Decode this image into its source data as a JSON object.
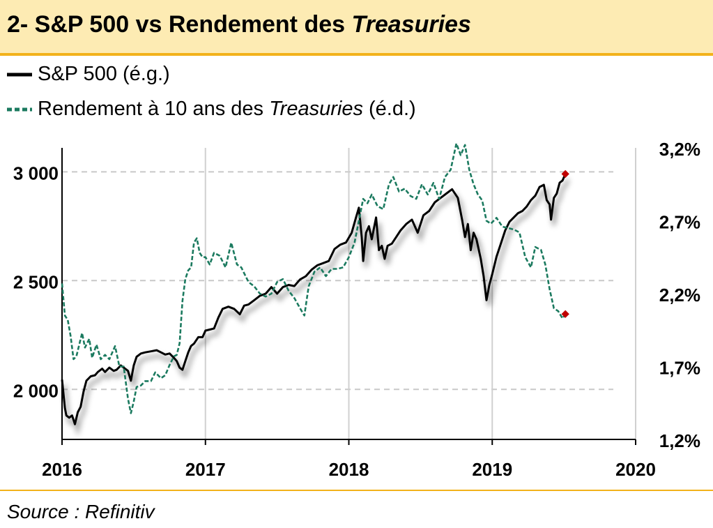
{
  "header": {
    "title_prefix": "2- S&P 500 vs Rendement des ",
    "title_italic": "Treasuries"
  },
  "legend": {
    "item1": "S&P 500 (é.g.)",
    "item2_prefix": "Rendement à 10 ans des ",
    "item2_italic": "Treasuries",
    "item2_suffix": " (é.d.)"
  },
  "source": "Source : Refinitiv",
  "colors": {
    "sp500": "#000000",
    "yield": "#1b7a5f",
    "marker": "#c00000",
    "accent": "#f2b21b",
    "header_bg": "#fdebb3"
  },
  "chart_data": {
    "type": "line",
    "x_ticks": [
      "2016",
      "2017",
      "2018",
      "2019",
      "2020"
    ],
    "xlim": [
      2016,
      2020
    ],
    "left_axis": {
      "ticks": [
        "2 000",
        "2 500",
        "3 000"
      ],
      "tick_values": [
        2000,
        2500,
        3000
      ],
      "ylim": [
        1770,
        3110
      ]
    },
    "right_axis": {
      "ticks": [
        "1,2%",
        "1,7%",
        "2,2%",
        "2,7%",
        "3,2%"
      ],
      "tick_values": [
        1.2,
        1.7,
        2.2,
        2.7,
        3.2
      ],
      "ylim": [
        1.2,
        3.2
      ]
    },
    "grid": "horizontal dashed",
    "series": [
      {
        "name": "S&P 500 (é.g.)",
        "axis": "left",
        "style": "solid",
        "points": [
          [
            2016.0,
            2045
          ],
          [
            2016.02,
            1915
          ],
          [
            2016.03,
            1880
          ],
          [
            2016.05,
            1870
          ],
          [
            2016.07,
            1880
          ],
          [
            2016.09,
            1840
          ],
          [
            2016.11,
            1895
          ],
          [
            2016.13,
            1920
          ],
          [
            2016.15,
            1990
          ],
          [
            2016.17,
            2040
          ],
          [
            2016.2,
            2060
          ],
          [
            2016.23,
            2065
          ],
          [
            2016.25,
            2080
          ],
          [
            2016.28,
            2095
          ],
          [
            2016.3,
            2080
          ],
          [
            2016.33,
            2100
          ],
          [
            2016.36,
            2085
          ],
          [
            2016.38,
            2090
          ],
          [
            2016.41,
            2110
          ],
          [
            2016.44,
            2095
          ],
          [
            2016.46,
            2085
          ],
          [
            2016.48,
            2040
          ],
          [
            2016.5,
            2110
          ],
          [
            2016.52,
            2150
          ],
          [
            2016.55,
            2165
          ],
          [
            2016.58,
            2170
          ],
          [
            2016.62,
            2175
          ],
          [
            2016.66,
            2180
          ],
          [
            2016.69,
            2170
          ],
          [
            2016.72,
            2160
          ],
          [
            2016.75,
            2165
          ],
          [
            2016.78,
            2145
          ],
          [
            2016.8,
            2130
          ],
          [
            2016.82,
            2100
          ],
          [
            2016.84,
            2090
          ],
          [
            2016.86,
            2130
          ],
          [
            2016.88,
            2170
          ],
          [
            2016.9,
            2200
          ],
          [
            2016.92,
            2210
          ],
          [
            2016.95,
            2240
          ],
          [
            2016.98,
            2240
          ],
          [
            2017.0,
            2270
          ],
          [
            2017.03,
            2275
          ],
          [
            2017.06,
            2280
          ],
          [
            2017.09,
            2330
          ],
          [
            2017.12,
            2370
          ],
          [
            2017.16,
            2380
          ],
          [
            2017.2,
            2370
          ],
          [
            2017.24,
            2345
          ],
          [
            2017.27,
            2385
          ],
          [
            2017.3,
            2390
          ],
          [
            2017.34,
            2410
          ],
          [
            2017.38,
            2430
          ],
          [
            2017.42,
            2440
          ],
          [
            2017.46,
            2470
          ],
          [
            2017.5,
            2440
          ],
          [
            2017.54,
            2470
          ],
          [
            2017.58,
            2480
          ],
          [
            2017.62,
            2475
          ],
          [
            2017.66,
            2505
          ],
          [
            2017.7,
            2520
          ],
          [
            2017.74,
            2550
          ],
          [
            2017.78,
            2570
          ],
          [
            2017.82,
            2580
          ],
          [
            2017.86,
            2590
          ],
          [
            2017.9,
            2645
          ],
          [
            2017.94,
            2665
          ],
          [
            2017.98,
            2675
          ],
          [
            2018.02,
            2720
          ],
          [
            2018.05,
            2790
          ],
          [
            2018.07,
            2835
          ],
          [
            2018.09,
            2700
          ],
          [
            2018.1,
            2590
          ],
          [
            2018.12,
            2720
          ],
          [
            2018.14,
            2750
          ],
          [
            2018.16,
            2690
          ],
          [
            2018.19,
            2790
          ],
          [
            2018.21,
            2640
          ],
          [
            2018.23,
            2660
          ],
          [
            2018.25,
            2600
          ],
          [
            2018.27,
            2660
          ],
          [
            2018.3,
            2670
          ],
          [
            2018.33,
            2700
          ],
          [
            2018.36,
            2730
          ],
          [
            2018.4,
            2760
          ],
          [
            2018.44,
            2780
          ],
          [
            2018.48,
            2720
          ],
          [
            2018.52,
            2800
          ],
          [
            2018.56,
            2820
          ],
          [
            2018.6,
            2860
          ],
          [
            2018.64,
            2880
          ],
          [
            2018.68,
            2900
          ],
          [
            2018.72,
            2920
          ],
          [
            2018.76,
            2880
          ],
          [
            2018.79,
            2780
          ],
          [
            2018.81,
            2700
          ],
          [
            2018.83,
            2760
          ],
          [
            2018.85,
            2640
          ],
          [
            2018.87,
            2720
          ],
          [
            2018.89,
            2690
          ],
          [
            2018.92,
            2600
          ],
          [
            2018.94,
            2520
          ],
          [
            2018.96,
            2410
          ],
          [
            2018.98,
            2480
          ],
          [
            2019.0,
            2530
          ],
          [
            2019.03,
            2610
          ],
          [
            2019.06,
            2670
          ],
          [
            2019.09,
            2730
          ],
          [
            2019.12,
            2770
          ],
          [
            2019.15,
            2790
          ],
          [
            2019.18,
            2810
          ],
          [
            2019.21,
            2820
          ],
          [
            2019.24,
            2840
          ],
          [
            2019.27,
            2870
          ],
          [
            2019.3,
            2890
          ],
          [
            2019.33,
            2930
          ],
          [
            2019.36,
            2940
          ],
          [
            2019.38,
            2870
          ],
          [
            2019.4,
            2850
          ],
          [
            2019.41,
            2780
          ],
          [
            2019.43,
            2880
          ],
          [
            2019.45,
            2900
          ],
          [
            2019.47,
            2950
          ],
          [
            2019.49,
            2960
          ],
          [
            2019.51,
            2990
          ]
        ]
      },
      {
        "name": "Rendement à 10 ans des Treasuries (é.d.)",
        "axis": "right",
        "style": "dashed",
        "points": [
          [
            2016.0,
            2.27
          ],
          [
            2016.02,
            2.05
          ],
          [
            2016.04,
            2.02
          ],
          [
            2016.06,
            1.91
          ],
          [
            2016.08,
            1.75
          ],
          [
            2016.1,
            1.77
          ],
          [
            2016.12,
            1.85
          ],
          [
            2016.14,
            1.93
          ],
          [
            2016.16,
            1.83
          ],
          [
            2016.19,
            1.89
          ],
          [
            2016.21,
            1.76
          ],
          [
            2016.24,
            1.85
          ],
          [
            2016.27,
            1.75
          ],
          [
            2016.3,
            1.78
          ],
          [
            2016.33,
            1.75
          ],
          [
            2016.37,
            1.84
          ],
          [
            2016.4,
            1.7
          ],
          [
            2016.43,
            1.7
          ],
          [
            2016.46,
            1.48
          ],
          [
            2016.48,
            1.38
          ],
          [
            2016.5,
            1.46
          ],
          [
            2016.52,
            1.56
          ],
          [
            2016.55,
            1.57
          ],
          [
            2016.58,
            1.6
          ],
          [
            2016.62,
            1.6
          ],
          [
            2016.65,
            1.66
          ],
          [
            2016.69,
            1.62
          ],
          [
            2016.72,
            1.64
          ],
          [
            2016.75,
            1.71
          ],
          [
            2016.78,
            1.77
          ],
          [
            2016.8,
            1.78
          ],
          [
            2016.82,
            1.86
          ],
          [
            2016.84,
            2.15
          ],
          [
            2016.86,
            2.3
          ],
          [
            2016.88,
            2.36
          ],
          [
            2016.9,
            2.38
          ],
          [
            2016.92,
            2.55
          ],
          [
            2016.94,
            2.58
          ],
          [
            2016.96,
            2.48
          ],
          [
            2016.98,
            2.45
          ],
          [
            2017.0,
            2.45
          ],
          [
            2017.03,
            2.4
          ],
          [
            2017.06,
            2.48
          ],
          [
            2017.1,
            2.46
          ],
          [
            2017.14,
            2.38
          ],
          [
            2017.18,
            2.55
          ],
          [
            2017.22,
            2.4
          ],
          [
            2017.25,
            2.38
          ],
          [
            2017.3,
            2.28
          ],
          [
            2017.34,
            2.25
          ],
          [
            2017.38,
            2.2
          ],
          [
            2017.42,
            2.18
          ],
          [
            2017.46,
            2.2
          ],
          [
            2017.5,
            2.28
          ],
          [
            2017.54,
            2.3
          ],
          [
            2017.58,
            2.22
          ],
          [
            2017.62,
            2.17
          ],
          [
            2017.66,
            2.1
          ],
          [
            2017.69,
            2.05
          ],
          [
            2017.72,
            2.25
          ],
          [
            2017.76,
            2.35
          ],
          [
            2017.8,
            2.38
          ],
          [
            2017.84,
            2.32
          ],
          [
            2017.88,
            2.37
          ],
          [
            2017.92,
            2.37
          ],
          [
            2017.96,
            2.38
          ],
          [
            2018.0,
            2.45
          ],
          [
            2018.04,
            2.55
          ],
          [
            2018.07,
            2.7
          ],
          [
            2018.1,
            2.85
          ],
          [
            2018.13,
            2.82
          ],
          [
            2018.16,
            2.88
          ],
          [
            2018.2,
            2.8
          ],
          [
            2018.24,
            2.78
          ],
          [
            2018.28,
            2.95
          ],
          [
            2018.31,
            3.0
          ],
          [
            2018.35,
            2.9
          ],
          [
            2018.39,
            2.92
          ],
          [
            2018.43,
            2.87
          ],
          [
            2018.47,
            2.85
          ],
          [
            2018.51,
            2.95
          ],
          [
            2018.55,
            2.88
          ],
          [
            2018.59,
            2.96
          ],
          [
            2018.63,
            2.85
          ],
          [
            2018.67,
            3.0
          ],
          [
            2018.71,
            3.05
          ],
          [
            2018.75,
            3.23
          ],
          [
            2018.78,
            3.15
          ],
          [
            2018.81,
            3.22
          ],
          [
            2018.84,
            3.05
          ],
          [
            2018.87,
            2.95
          ],
          [
            2018.9,
            2.88
          ],
          [
            2018.93,
            2.84
          ],
          [
            2018.96,
            2.7
          ],
          [
            2018.99,
            2.68
          ],
          [
            2019.03,
            2.72
          ],
          [
            2019.07,
            2.66
          ],
          [
            2019.11,
            2.65
          ],
          [
            2019.15,
            2.64
          ],
          [
            2019.19,
            2.62
          ],
          [
            2019.23,
            2.45
          ],
          [
            2019.27,
            2.38
          ],
          [
            2019.3,
            2.52
          ],
          [
            2019.34,
            2.5
          ],
          [
            2019.37,
            2.4
          ],
          [
            2019.4,
            2.23
          ],
          [
            2019.43,
            2.1
          ],
          [
            2019.46,
            2.08
          ],
          [
            2019.49,
            2.03
          ],
          [
            2019.51,
            2.06
          ]
        ]
      }
    ]
  }
}
